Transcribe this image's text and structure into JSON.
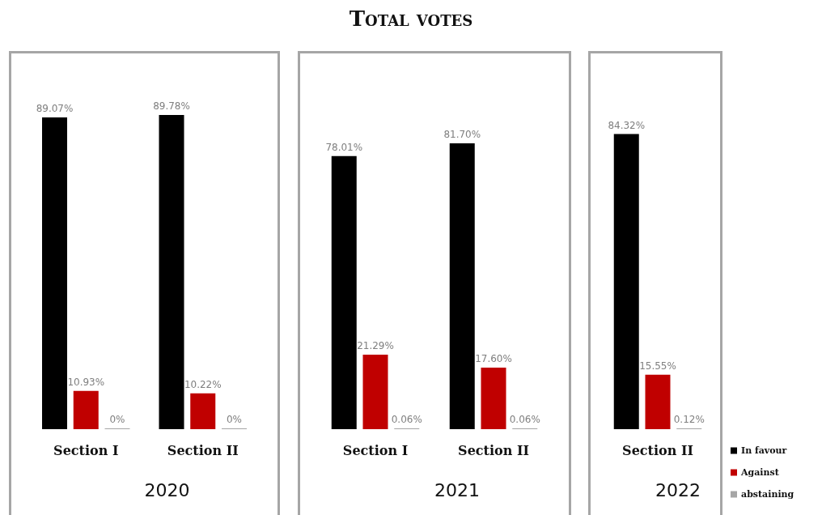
{
  "chart_data": [
    {
      "type": "other",
      "title": "Total votes"
    },
    {
      "type": "bar",
      "xlabel": "2020",
      "categories": [
        "Section I",
        "Section II"
      ],
      "series": [
        {
          "color": "#000000",
          "values": [
            89.07,
            89.78
          ],
          "value_labels": [
            "89.07%",
            "89.78%"
          ]
        },
        {
          "color": "#c00000",
          "values": [
            10.93,
            10.22
          ],
          "value_labels": [
            "10.93%",
            "10.22%"
          ]
        },
        {
          "color": "#a6a6a6",
          "values": [
            0,
            0
          ],
          "value_labels": [
            "0%",
            "0%"
          ]
        }
      ]
    },
    {
      "type": "bar",
      "xlabel": "2021",
      "categories": [
        "Section I",
        "Section II"
      ],
      "series": [
        {
          "color": "#000000",
          "values": [
            78.01,
            81.7
          ],
          "value_labels": [
            "78.01%",
            "81.70%"
          ]
        },
        {
          "color": "#c00000",
          "values": [
            21.29,
            17.6
          ],
          "value_labels": [
            "21.29%",
            "17.60%"
          ]
        },
        {
          "color": "#a6a6a6",
          "values": [
            0.06,
            0.06
          ],
          "value_labels": [
            "0.06%",
            "0.06%"
          ]
        }
      ]
    },
    {
      "type": "bar",
      "xlabel": "2022",
      "legend": "bottom right",
      "categories": [
        "Section II"
      ],
      "series": [
        {
          "name": "In favour",
          "color": "#000000",
          "values": [
            84.32
          ],
          "value_labels": [
            "84.32%"
          ]
        },
        {
          "name": "Against",
          "color": "#c00000",
          "values": [
            15.55
          ],
          "value_labels": [
            "15.55%"
          ]
        },
        {
          "name": "abstaining",
          "color": "#a6a6a6",
          "values": [
            0.12
          ],
          "value_labels": [
            "0.12%"
          ]
        }
      ]
    }
  ]
}
